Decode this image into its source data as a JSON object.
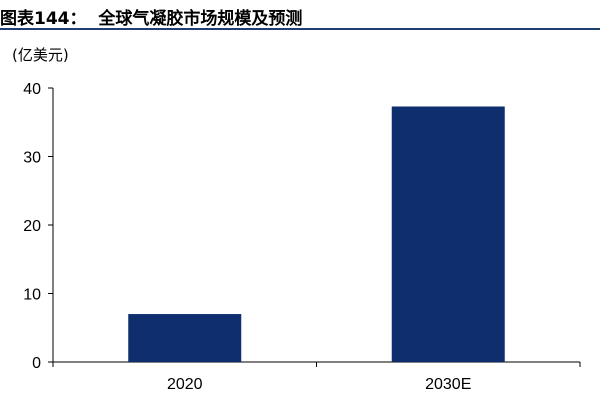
{
  "header": {
    "title": "图表144：  全球气凝胶市场规模及预测"
  },
  "chart_data": {
    "type": "bar",
    "title": "全球气凝胶市场规模及预测",
    "unit": "(亿美元)",
    "categories": [
      "2020",
      "2030E"
    ],
    "values": [
      7,
      37.3
    ],
    "ylim": [
      0,
      40
    ],
    "yticks": [
      0,
      10,
      20,
      30,
      40
    ],
    "bar_color": "#0e2e6e",
    "grid": false,
    "legend": "none"
  }
}
